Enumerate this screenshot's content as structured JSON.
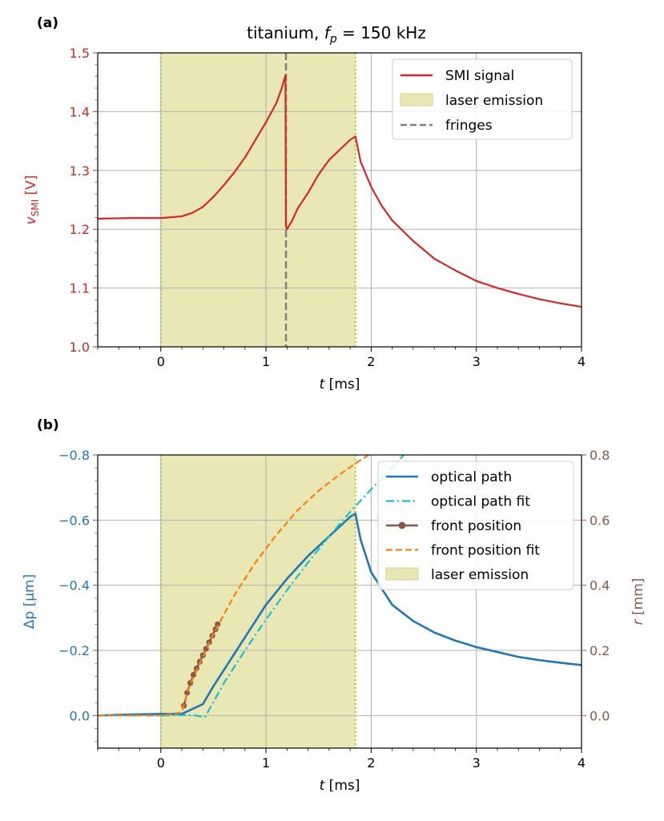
{
  "figure": {
    "panel_a_label": "(a)",
    "panel_b_label": "(b)",
    "title_prefix": "titanium, ",
    "title_var": "f",
    "title_sub": "p",
    "title_value": " = 150 kHz"
  },
  "colors": {
    "smi": "#d62728",
    "optical": "#1f77b4",
    "optical_fit": "#17becf",
    "front": "#8c564b",
    "front_fit": "#ff7f0e",
    "laser": "#e9e7b4",
    "fringes": "#7f7f7f",
    "dotted": "#bcbd22",
    "grid": "#b0b0b0",
    "axis_b_left": "#1f77b4",
    "axis_b_right": "#8c564b",
    "axis_a_left": "#d62728"
  },
  "chart_data": [
    {
      "type": "line",
      "panel": "a",
      "title": "titanium, f_p = 150 kHz",
      "xlabel": "t [ms]",
      "ylabel": "v_SMI [V]",
      "ylabel_var": "v",
      "ylabel_sub": "SMI",
      "ylabel_unit": " [V]",
      "xlim": [
        -0.6,
        4.0
      ],
      "ylim": [
        1.0,
        1.5
      ],
      "xticks": [
        0,
        1,
        2,
        3,
        4
      ],
      "xtick_labels": [
        "0",
        "1",
        "2",
        "3",
        "4"
      ],
      "yticks": [
        1.0,
        1.1,
        1.2,
        1.3,
        1.4,
        1.5
      ],
      "ytick_labels": [
        "1.0",
        "1.1",
        "1.2",
        "1.3",
        "1.4",
        "1.5"
      ],
      "grid": true,
      "legend_position": "top-right",
      "laser_emission": [
        0.0,
        1.85
      ],
      "fringe_times": [
        1.19
      ],
      "legend": [
        {
          "label": "SMI signal",
          "kind": "line"
        },
        {
          "label": "laser emission",
          "kind": "patch"
        },
        {
          "label": "fringes",
          "kind": "dashed"
        }
      ],
      "series": [
        {
          "name": "SMI signal",
          "x": [
            -0.6,
            -0.3,
            0.0,
            0.2,
            0.3,
            0.4,
            0.5,
            0.6,
            0.7,
            0.8,
            0.9,
            1.0,
            1.1,
            1.15,
            1.185,
            1.19,
            1.2,
            1.25,
            1.3,
            1.4,
            1.5,
            1.6,
            1.7,
            1.8,
            1.85,
            1.9,
            2.0,
            2.1,
            2.2,
            2.4,
            2.6,
            2.8,
            3.0,
            3.2,
            3.4,
            3.6,
            3.8,
            4.0
          ],
          "values": [
            1.218,
            1.219,
            1.219,
            1.222,
            1.228,
            1.238,
            1.255,
            1.275,
            1.297,
            1.322,
            1.352,
            1.382,
            1.415,
            1.44,
            1.462,
            1.205,
            1.2,
            1.215,
            1.235,
            1.262,
            1.293,
            1.318,
            1.335,
            1.352,
            1.358,
            1.315,
            1.272,
            1.24,
            1.215,
            1.18,
            1.15,
            1.13,
            1.112,
            1.1,
            1.09,
            1.081,
            1.074,
            1.068
          ]
        }
      ]
    },
    {
      "type": "line",
      "panel": "b",
      "xlabel": "t [ms]",
      "ylabel_left": "Δp [µm]",
      "ylabel_left_text": "Δp [µm]",
      "ylabel_right": "r [mm]",
      "ylabel_right_var": "r",
      "ylabel_right_unit": " [mm]",
      "xlim": [
        -0.6,
        4.0
      ],
      "ylim_left": [
        0.1,
        -0.8
      ],
      "ylim_right": [
        -0.1,
        0.8
      ],
      "xticks": [
        0,
        1,
        2,
        3,
        4
      ],
      "xtick_labels": [
        "0",
        "1",
        "2",
        "3",
        "4"
      ],
      "yticks_left": [
        0.0,
        -0.2,
        -0.4,
        -0.6,
        -0.8
      ],
      "ytick_labels_left": [
        "0.0",
        "−0.2",
        "−0.4",
        "−0.6",
        "−0.8"
      ],
      "yticks_right": [
        0.0,
        0.2,
        0.4,
        0.6,
        0.8
      ],
      "ytick_labels_right": [
        "0.0",
        "0.2",
        "0.4",
        "0.6",
        "0.8"
      ],
      "grid": true,
      "legend_position": "top-right",
      "laser_emission": [
        0.0,
        1.85
      ],
      "legend": [
        {
          "label": "optical path",
          "kind": "line"
        },
        {
          "label": "optical path fit",
          "kind": "dashdot"
        },
        {
          "label": "front position",
          "kind": "marker"
        },
        {
          "label": "front position fit",
          "kind": "dashed"
        },
        {
          "label": "laser emission",
          "kind": "patch"
        }
      ],
      "series": [
        {
          "name": "optical path",
          "axis": "left",
          "x": [
            -0.6,
            -0.3,
            0.0,
            0.2,
            0.3,
            0.4,
            0.5,
            0.6,
            0.8,
            1.0,
            1.2,
            1.4,
            1.6,
            1.8,
            1.85,
            1.9,
            2.0,
            2.2,
            2.4,
            2.6,
            2.8,
            3.0,
            3.2,
            3.4,
            3.6,
            3.8,
            4.0
          ],
          "values": [
            0.0,
            -0.003,
            -0.005,
            -0.005,
            -0.02,
            -0.035,
            -0.09,
            -0.14,
            -0.24,
            -0.34,
            -0.42,
            -0.49,
            -0.55,
            -0.61,
            -0.62,
            -0.54,
            -0.44,
            -0.34,
            -0.29,
            -0.255,
            -0.23,
            -0.21,
            -0.195,
            -0.18,
            -0.17,
            -0.162,
            -0.155
          ]
        },
        {
          "name": "optical path fit",
          "axis": "left",
          "x": [
            -0.6,
            0.0,
            0.3,
            0.42,
            0.6,
            0.8,
            1.0,
            1.2,
            1.4,
            1.6,
            1.8,
            2.0,
            2.2,
            2.31
          ],
          "values": [
            0.0,
            0.0,
            -0.002,
            0.005,
            -0.1,
            -0.2,
            -0.295,
            -0.385,
            -0.47,
            -0.55,
            -0.625,
            -0.695,
            -0.76,
            -0.8
          ]
        },
        {
          "name": "front position",
          "axis": "right",
          "markers": true,
          "x": [
            0.22,
            0.25,
            0.28,
            0.31,
            0.34,
            0.37,
            0.4,
            0.43,
            0.46,
            0.49,
            0.52,
            0.54
          ],
          "values": [
            0.03,
            0.07,
            0.1,
            0.125,
            0.145,
            0.165,
            0.185,
            0.205,
            0.225,
            0.245,
            0.265,
            0.28
          ]
        },
        {
          "name": "front position fit",
          "axis": "right",
          "x": [
            -0.6,
            0.0,
            0.2,
            0.25,
            0.3,
            0.4,
            0.5,
            0.7,
            0.9,
            1.1,
            1.3,
            1.5,
            1.7,
            1.9,
            1.98
          ],
          "values": [
            0.0,
            0.0,
            0.01,
            0.07,
            0.11,
            0.18,
            0.25,
            0.37,
            0.47,
            0.555,
            0.63,
            0.69,
            0.74,
            0.785,
            0.8
          ]
        }
      ]
    }
  ]
}
